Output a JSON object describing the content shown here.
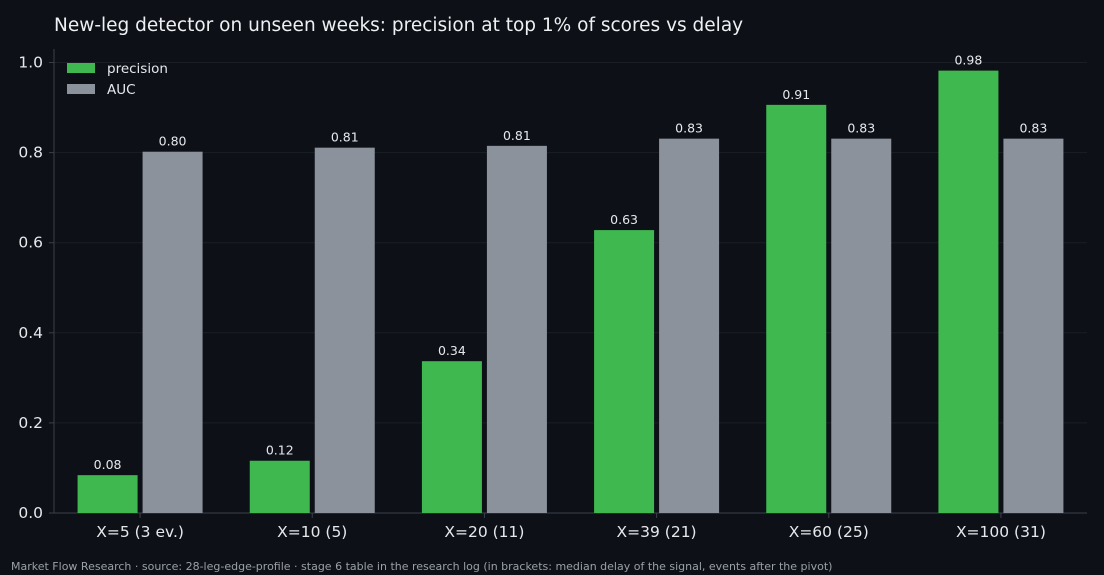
{
  "title": "New-leg detector on unseen weeks: precision at top 1% of scores vs delay",
  "footer": "Market Flow Research · source: 28-leg-edge-profile · stage 6 table in the research log (in brackets: median delay of the signal, events after the pivot)",
  "colors": {
    "background": "#0d1017",
    "precision": "#3fb850",
    "auc": "#8b929c",
    "axis": "#3a3f48",
    "grid": "#1a1f27",
    "text": "#e6e8ec"
  },
  "chart_data": {
    "type": "bar",
    "categories": [
      "X=5 (3 ev.)",
      "X=10 (5)",
      "X=20 (11)",
      "X=39 (21)",
      "X=60 (25)",
      "X=100 (31)"
    ],
    "series": [
      {
        "name": "precision",
        "color": "#3fb850",
        "values": [
          0.084,
          0.116,
          0.337,
          0.628,
          0.906,
          0.982
        ],
        "labels": [
          "0.08",
          "0.12",
          "0.34",
          "0.63",
          "0.91",
          "0.98"
        ]
      },
      {
        "name": "AUC",
        "color": "#8b929c",
        "values": [
          0.802,
          0.811,
          0.815,
          0.831,
          0.831,
          0.831
        ],
        "labels": [
          "0.80",
          "0.81",
          "0.81",
          "0.83",
          "0.83",
          "0.83"
        ]
      }
    ],
    "yticks": [
      "0.0",
      "0.2",
      "0.4",
      "0.6",
      "0.8",
      "1.0"
    ],
    "ylim": [
      0,
      1.03
    ],
    "grid": true,
    "legend": "top-left"
  }
}
